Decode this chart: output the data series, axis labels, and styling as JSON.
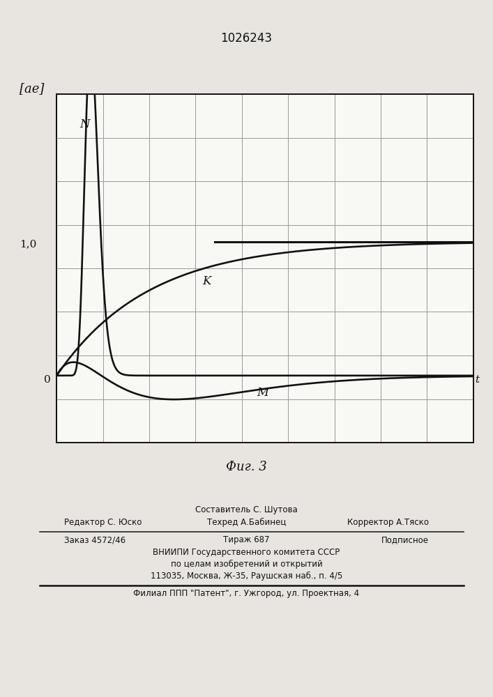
{
  "title": "1026243",
  "caption": "Фиг. 3",
  "ylabel": "[ae]",
  "xlabel": "t",
  "origin_label": "0",
  "ytick_label": "1,0",
  "ytick_value": 1.0,
  "ymin": -0.5,
  "ymax": 2.1,
  "xmin": 0.0,
  "xmax": 10.0,
  "n_xcells": 9,
  "n_ycells": 8,
  "grid_color": "#999999",
  "line_color": "#111111",
  "bg_color": "#f8f8f5",
  "page_color": "#e8e5e0",
  "curve_N_label": "N",
  "curve_K_label": "K",
  "curve_M_label": "M",
  "footer_line0": "Составитель С. Шутова",
  "footer_line1_left": "Редактор С. Юско",
  "footer_line1_mid": "Техред А.Бабинец",
  "footer_line1_right": "Корректор А.Тяско",
  "footer_line2_left": "Заказ 4572/46",
  "footer_line2_mid": "Тираж 687",
  "footer_line2_right": "Подписное",
  "footer_line3": "ВНИИПИ Государственного комитета СССР",
  "footer_line4": "по целам изобретений и открытий",
  "footer_line5": "113035, Москва, Ж-35, Раушская наб., п. 4/5",
  "footer_line6": "Филиал ППП \"Патент\", г. Ужгород, ул. Проектная, 4"
}
